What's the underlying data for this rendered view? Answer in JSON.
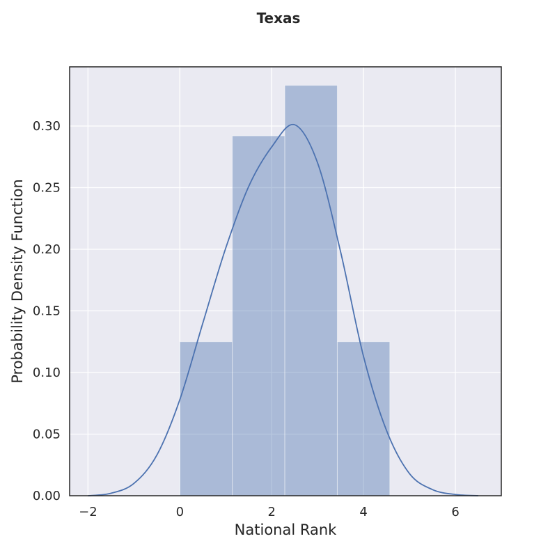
{
  "chart_data": {
    "type": "bar",
    "title": "Texas",
    "xlabel": "National Rank",
    "ylabel": "Probability Density Function",
    "xlim": [
      -2.4,
      7.0
    ],
    "ylim": [
      0.0,
      0.348
    ],
    "grid": true,
    "background": "#eaeaf2",
    "bar_color": "#4c72b0",
    "xticks": [
      -2,
      0,
      2,
      4,
      6
    ],
    "xtick_labels": [
      "−2",
      "0",
      "2",
      "4",
      "6"
    ],
    "yticks": [
      0.0,
      0.05,
      0.1,
      0.15,
      0.2,
      0.25,
      0.3
    ],
    "ytick_labels": [
      "0.00",
      "0.05",
      "0.10",
      "0.15",
      "0.20",
      "0.25",
      "0.30"
    ],
    "histogram": {
      "bin_edges": [
        0.0,
        1.143,
        2.286,
        3.429,
        4.571
      ],
      "density": [
        0.125,
        0.292,
        0.333,
        0.125
      ]
    },
    "kde": {
      "x": [
        -2.0,
        -1.5,
        -1.0,
        -0.5,
        0.0,
        0.5,
        1.0,
        1.5,
        2.0,
        2.5,
        3.0,
        3.5,
        4.0,
        4.5,
        5.0,
        5.5,
        6.0,
        6.5
      ],
      "y": [
        0.0,
        0.002,
        0.01,
        0.033,
        0.078,
        0.14,
        0.201,
        0.251,
        0.283,
        0.301,
        0.27,
        0.198,
        0.113,
        0.053,
        0.018,
        0.005,
        0.001,
        0.0
      ]
    }
  }
}
